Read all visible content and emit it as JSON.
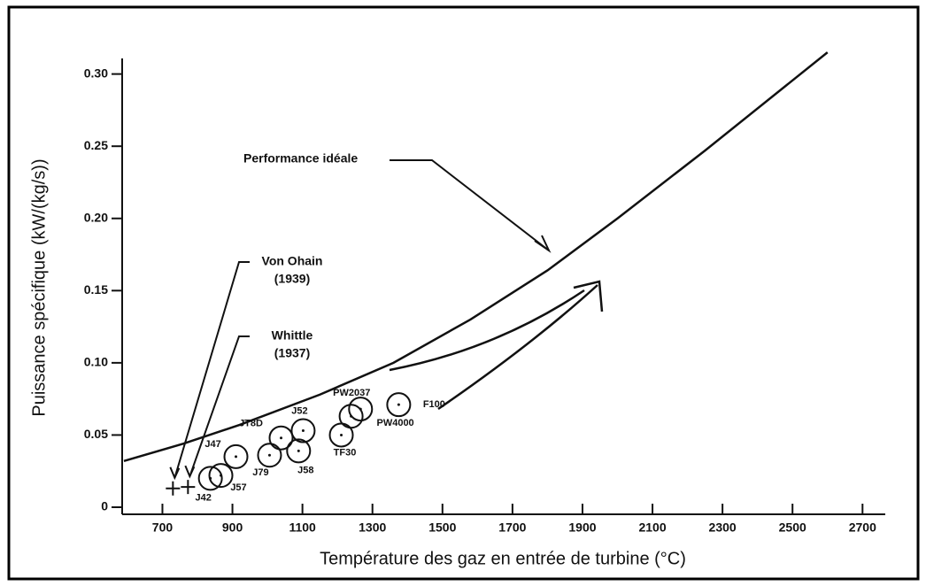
{
  "chart_data": {
    "type": "scatter",
    "xlabel": "Température des gaz en entrée de turbine (°C)",
    "ylabel": "Puissance spécifique (kW/(kg/s))",
    "xlim": [
      585,
      2765
    ],
    "ylim": [
      0,
      0.32
    ],
    "xticks": [
      700,
      900,
      1100,
      1300,
      1500,
      1700,
      1900,
      2100,
      2300,
      2500,
      2700
    ],
    "yticks": [
      0,
      0.05,
      {
        "value": 0.1,
        "label": "0.10"
      },
      0.15,
      {
        "value": 0.2,
        "label": "0.20"
      },
      0.25,
      {
        "value": 0.3,
        "label": "0.30"
      }
    ],
    "curve": {
      "name": "Performance idéale",
      "x": [
        590,
        760,
        920,
        1150,
        1360,
        1580,
        1800,
        2000,
        2250,
        2600
      ],
      "values": [
        0.032,
        0.044,
        0.057,
        0.078,
        0.1,
        0.13,
        0.164,
        0.2,
        0.247,
        0.315
      ]
    },
    "pioneers": [
      {
        "label": [
          "Von Ohain",
          "(1939)"
        ],
        "x": 730,
        "y": 0.013
      },
      {
        "label": [
          "Whittle",
          "(1937)"
        ],
        "x": 773,
        "y": 0.014
      }
    ],
    "engines": {
      "labels": [
        "J42",
        "J57",
        "J47",
        "J79",
        "JT8D",
        "J58",
        "J52",
        "TF30",
        "PW4000",
        "PW2037",
        "F100"
      ],
      "x": [
        837,
        867,
        910,
        1006,
        1039,
        1089,
        1102,
        1211,
        1239,
        1266,
        1375
      ],
      "y": [
        0.02,
        0.022,
        0.035,
        0.036,
        0.048,
        0.039,
        0.053,
        0.05,
        0.063,
        0.068,
        0.071
      ]
    }
  }
}
